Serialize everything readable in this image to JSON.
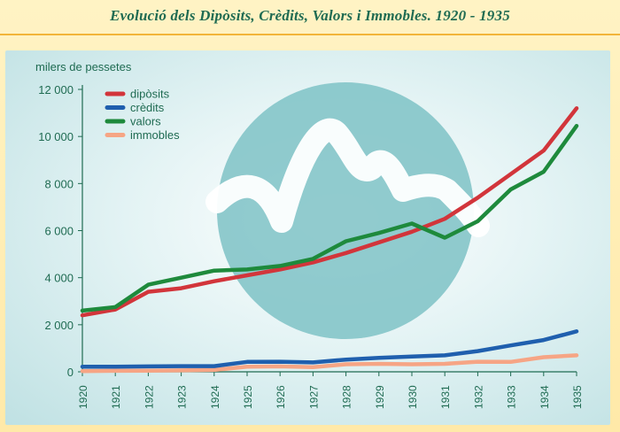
{
  "title": "Evolució dels Dipòsits, Crèdits, Valors i Immobles. 1920 - 1935",
  "chart_data": {
    "type": "line",
    "title": "Evolució dels Dipòsits, Crèdits, Valors i Immobles. 1920 - 1935",
    "ylabel": "milers de pessetes",
    "xlabel": "",
    "ylim": [
      0,
      12000
    ],
    "yticks": [
      0,
      2000,
      4000,
      6000,
      8000,
      10000,
      12000
    ],
    "ytick_labels": [
      "0",
      "2 000",
      "4 000",
      "6 000",
      "8 000",
      "10 000",
      "12 000"
    ],
    "x": [
      "1920",
      "1921",
      "1922",
      "1923",
      "1924",
      "1925",
      "1926",
      "1927",
      "1928",
      "1929",
      "1930",
      "1931",
      "1932",
      "1933",
      "1934",
      "1935"
    ],
    "legend_position": "top-left",
    "series": [
      {
        "name": "dipòsits",
        "color": "#d2353b",
        "values": [
          2400,
          2650,
          3400,
          3550,
          3850,
          4100,
          4350,
          4650,
          5050,
          5500,
          5950,
          6500,
          7400,
          8400,
          9400,
          11200
        ]
      },
      {
        "name": "crèdits",
        "color": "#1f5fae",
        "values": [
          220,
          220,
          230,
          240,
          240,
          420,
          430,
          400,
          520,
          590,
          650,
          700,
          880,
          1120,
          1350,
          1720
        ]
      },
      {
        "name": "valors",
        "color": "#1e8a3c",
        "values": [
          2600,
          2750,
          3700,
          4000,
          4300,
          4350,
          4500,
          4800,
          5550,
          5900,
          6300,
          5700,
          6400,
          7750,
          8500,
          10450
        ]
      },
      {
        "name": "immobles",
        "color": "#f6a585",
        "values": [
          30,
          40,
          50,
          60,
          80,
          220,
          230,
          200,
          320,
          340,
          320,
          340,
          430,
          420,
          620,
          700
        ]
      }
    ]
  }
}
